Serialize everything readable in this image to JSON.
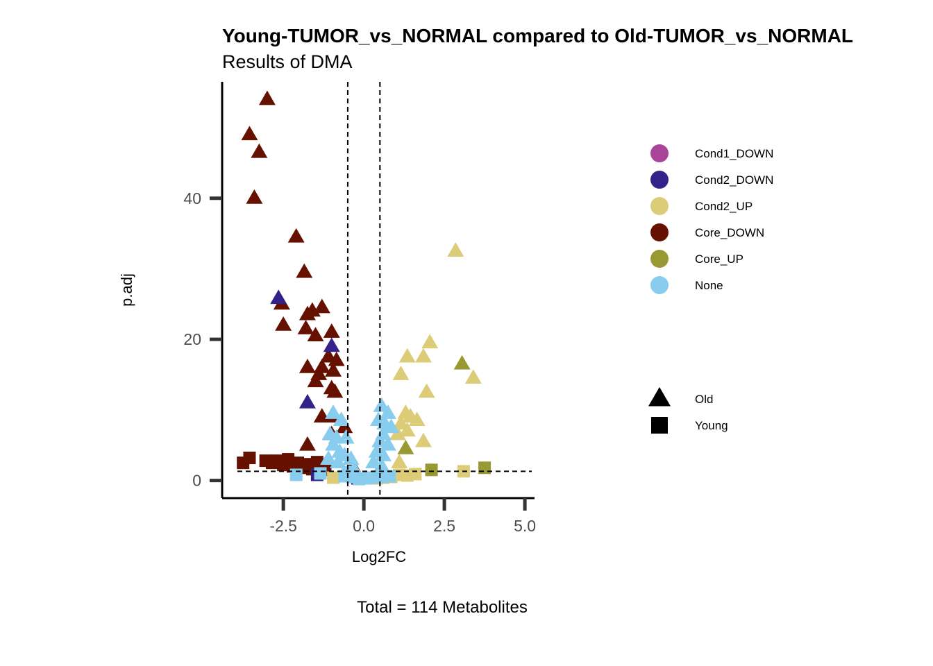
{
  "chart_data": {
    "type": "scatter",
    "title": "Young-TUMOR_vs_NORMAL compared to Old-TUMOR_vs_NORMAL",
    "subtitle": "Results of DMA",
    "xlabel": "Log2FC",
    "ylabel": "p.adj",
    "caption": "Total = 114 Metabolites",
    "xlim": [
      -4.4,
      5.3
    ],
    "ylim": [
      -2.5,
      56.5
    ],
    "x_ticks": [
      -2.5,
      0.0,
      2.5,
      5.0
    ],
    "x_tick_labels": [
      "-2.5",
      "0.0",
      "2.5",
      "5.0"
    ],
    "y_ticks": [
      0,
      20,
      40
    ],
    "y_tick_labels": [
      "0",
      "20",
      "40"
    ],
    "vlines": [
      -0.5,
      0.5
    ],
    "hline": 1.3,
    "grid": false,
    "legend_position": "right",
    "color_legend": [
      {
        "label": "Cond1_DOWN",
        "color": "#AA4499"
      },
      {
        "label": "Cond2_DOWN",
        "color": "#332288"
      },
      {
        "label": "Cond2_UP",
        "color": "#DDCC77"
      },
      {
        "label": "Core_DOWN",
        "color": "#661100"
      },
      {
        "label": "Core_UP",
        "color": "#999933"
      },
      {
        "label": "None",
        "color": "#88CCEE"
      }
    ],
    "shape_legend": [
      {
        "label": "Old",
        "shape": "triangle"
      },
      {
        "label": "Young",
        "shape": "square"
      }
    ],
    "series": [
      {
        "name": "Core_DOWN",
        "color": "#661100",
        "points": [
          {
            "x": -3.0,
            "y": 54.0,
            "shape": "triangle"
          },
          {
            "x": -3.55,
            "y": 49.0,
            "shape": "triangle"
          },
          {
            "x": -3.25,
            "y": 46.5,
            "shape": "triangle"
          },
          {
            "x": -3.4,
            "y": 40.0,
            "shape": "triangle"
          },
          {
            "x": -2.1,
            "y": 34.5,
            "shape": "triangle"
          },
          {
            "x": -1.85,
            "y": 29.5,
            "shape": "triangle"
          },
          {
            "x": -2.55,
            "y": 25.0,
            "shape": "triangle"
          },
          {
            "x": -1.6,
            "y": 24.0,
            "shape": "triangle"
          },
          {
            "x": -1.75,
            "y": 23.5,
            "shape": "triangle"
          },
          {
            "x": -1.3,
            "y": 24.5,
            "shape": "triangle"
          },
          {
            "x": -2.5,
            "y": 22.0,
            "shape": "triangle"
          },
          {
            "x": -1.8,
            "y": 21.5,
            "shape": "triangle"
          },
          {
            "x": -1.5,
            "y": 20.5,
            "shape": "triangle"
          },
          {
            "x": -1.0,
            "y": 21.0,
            "shape": "triangle"
          },
          {
            "x": -1.1,
            "y": 17.5,
            "shape": "triangle"
          },
          {
            "x": -0.85,
            "y": 17.0,
            "shape": "triangle"
          },
          {
            "x": -1.3,
            "y": 16.0,
            "shape": "triangle"
          },
          {
            "x": -1.75,
            "y": 16.0,
            "shape": "triangle"
          },
          {
            "x": -1.4,
            "y": 15.0,
            "shape": "triangle"
          },
          {
            "x": -0.95,
            "y": 15.5,
            "shape": "triangle"
          },
          {
            "x": -1.5,
            "y": 14.0,
            "shape": "triangle"
          },
          {
            "x": -1.0,
            "y": 13.0,
            "shape": "triangle"
          },
          {
            "x": -0.9,
            "y": 12.5,
            "shape": "triangle"
          },
          {
            "x": -1.3,
            "y": 9.0,
            "shape": "triangle"
          },
          {
            "x": -0.95,
            "y": 9.0,
            "shape": "triangle"
          },
          {
            "x": -1.0,
            "y": 6.5,
            "shape": "triangle"
          },
          {
            "x": -0.6,
            "y": 7.5,
            "shape": "triangle"
          },
          {
            "x": -1.75,
            "y": 5.0,
            "shape": "triangle"
          },
          {
            "x": -0.35,
            "y": 2.0,
            "shape": "triangle"
          },
          {
            "x": -3.75,
            "y": 2.5,
            "shape": "square"
          },
          {
            "x": -3.55,
            "y": 3.2,
            "shape": "square"
          },
          {
            "x": -3.05,
            "y": 2.8,
            "shape": "square"
          },
          {
            "x": -2.85,
            "y": 2.5,
            "shape": "square"
          },
          {
            "x": -2.7,
            "y": 2.8,
            "shape": "square"
          },
          {
            "x": -2.5,
            "y": 2.2,
            "shape": "square"
          },
          {
            "x": -2.35,
            "y": 3.0,
            "shape": "square"
          },
          {
            "x": -2.2,
            "y": 2.0,
            "shape": "square"
          },
          {
            "x": -2.05,
            "y": 2.5,
            "shape": "square"
          },
          {
            "x": -1.9,
            "y": 1.8,
            "shape": "square"
          },
          {
            "x": -1.75,
            "y": 2.3,
            "shape": "square"
          },
          {
            "x": -1.6,
            "y": 1.6,
            "shape": "square"
          },
          {
            "x": -1.45,
            "y": 2.6,
            "shape": "square"
          },
          {
            "x": -1.3,
            "y": 2.0,
            "shape": "square"
          },
          {
            "x": -1.2,
            "y": 1.5,
            "shape": "square"
          }
        ]
      },
      {
        "name": "Cond2_DOWN",
        "color": "#332288",
        "points": [
          {
            "x": -2.65,
            "y": 25.8,
            "shape": "triangle"
          },
          {
            "x": -1.0,
            "y": 19.0,
            "shape": "triangle"
          },
          {
            "x": -1.75,
            "y": 11.0,
            "shape": "triangle"
          },
          {
            "x": -1.45,
            "y": 0.8,
            "shape": "square"
          },
          {
            "x": -0.2,
            "y": 0.3,
            "shape": "square"
          }
        ]
      },
      {
        "name": "Cond1_DOWN",
        "color": "#AA4499",
        "points": [
          {
            "x": 0.15,
            "y": 0.4,
            "shape": "square"
          }
        ]
      },
      {
        "name": "Cond2_UP",
        "color": "#DDCC77",
        "points": [
          {
            "x": 2.85,
            "y": 32.5,
            "shape": "triangle"
          },
          {
            "x": 2.05,
            "y": 19.5,
            "shape": "triangle"
          },
          {
            "x": 1.35,
            "y": 17.5,
            "shape": "triangle"
          },
          {
            "x": 1.85,
            "y": 17.5,
            "shape": "triangle"
          },
          {
            "x": 1.15,
            "y": 15.0,
            "shape": "triangle"
          },
          {
            "x": 3.4,
            "y": 14.5,
            "shape": "triangle"
          },
          {
            "x": 1.95,
            "y": 12.5,
            "shape": "triangle"
          },
          {
            "x": 1.3,
            "y": 9.5,
            "shape": "triangle"
          },
          {
            "x": 1.45,
            "y": 9.0,
            "shape": "triangle"
          },
          {
            "x": 1.65,
            "y": 8.5,
            "shape": "triangle"
          },
          {
            "x": 1.15,
            "y": 8.0,
            "shape": "triangle"
          },
          {
            "x": 1.35,
            "y": 7.0,
            "shape": "triangle"
          },
          {
            "x": 1.05,
            "y": 6.5,
            "shape": "triangle"
          },
          {
            "x": 1.85,
            "y": 5.5,
            "shape": "triangle"
          },
          {
            "x": 1.1,
            "y": 2.5,
            "shape": "triangle"
          },
          {
            "x": 3.1,
            "y": 1.3,
            "shape": "square"
          },
          {
            "x": 1.6,
            "y": 0.9,
            "shape": "square"
          },
          {
            "x": 1.35,
            "y": 0.7,
            "shape": "square"
          },
          {
            "x": 1.1,
            "y": 0.8,
            "shape": "square"
          },
          {
            "x": 0.85,
            "y": 0.5,
            "shape": "square"
          },
          {
            "x": 0.6,
            "y": 0.4,
            "shape": "square"
          },
          {
            "x": 0.4,
            "y": 0.3,
            "shape": "square"
          },
          {
            "x": -0.95,
            "y": 0.4,
            "shape": "square"
          }
        ]
      },
      {
        "name": "Core_UP",
        "color": "#999933",
        "points": [
          {
            "x": 3.05,
            "y": 16.5,
            "shape": "triangle"
          },
          {
            "x": 1.3,
            "y": 4.5,
            "shape": "triangle"
          },
          {
            "x": 2.1,
            "y": 1.5,
            "shape": "square"
          },
          {
            "x": 3.75,
            "y": 1.8,
            "shape": "square"
          }
        ]
      },
      {
        "name": "None",
        "color": "#88CCEE",
        "points": [
          {
            "x": -0.95,
            "y": 9.5,
            "shape": "triangle"
          },
          {
            "x": -0.7,
            "y": 8.5,
            "shape": "triangle"
          },
          {
            "x": -1.05,
            "y": 6.5,
            "shape": "triangle"
          },
          {
            "x": -0.85,
            "y": 6.0,
            "shape": "triangle"
          },
          {
            "x": -0.55,
            "y": 6.0,
            "shape": "triangle"
          },
          {
            "x": -0.95,
            "y": 5.0,
            "shape": "triangle"
          },
          {
            "x": -0.75,
            "y": 4.0,
            "shape": "triangle"
          },
          {
            "x": -0.6,
            "y": 3.5,
            "shape": "triangle"
          },
          {
            "x": -0.4,
            "y": 3.0,
            "shape": "triangle"
          },
          {
            "x": -1.1,
            "y": 3.0,
            "shape": "triangle"
          },
          {
            "x": -0.8,
            "y": 2.5,
            "shape": "triangle"
          },
          {
            "x": -0.3,
            "y": 1.5,
            "shape": "triangle"
          },
          {
            "x": 0.55,
            "y": 10.5,
            "shape": "triangle"
          },
          {
            "x": 0.75,
            "y": 9.5,
            "shape": "triangle"
          },
          {
            "x": 0.45,
            "y": 8.5,
            "shape": "triangle"
          },
          {
            "x": 0.65,
            "y": 8.0,
            "shape": "triangle"
          },
          {
            "x": 0.85,
            "y": 7.5,
            "shape": "triangle"
          },
          {
            "x": 0.6,
            "y": 6.5,
            "shape": "triangle"
          },
          {
            "x": 0.5,
            "y": 5.5,
            "shape": "triangle"
          },
          {
            "x": 0.75,
            "y": 5.0,
            "shape": "triangle"
          },
          {
            "x": 0.4,
            "y": 4.0,
            "shape": "triangle"
          },
          {
            "x": 0.6,
            "y": 3.5,
            "shape": "triangle"
          },
          {
            "x": 0.3,
            "y": 2.5,
            "shape": "triangle"
          },
          {
            "x": 0.55,
            "y": 2.0,
            "shape": "triangle"
          },
          {
            "x": -2.1,
            "y": 0.8,
            "shape": "square"
          },
          {
            "x": -1.35,
            "y": 1.0,
            "shape": "square"
          },
          {
            "x": -0.6,
            "y": 0.6,
            "shape": "square"
          },
          {
            "x": -0.35,
            "y": 0.5,
            "shape": "square"
          },
          {
            "x": -0.15,
            "y": 0.2,
            "shape": "square"
          },
          {
            "x": 0.05,
            "y": 0.3,
            "shape": "square"
          },
          {
            "x": 0.3,
            "y": 0.4,
            "shape": "square"
          },
          {
            "x": 0.55,
            "y": 0.5,
            "shape": "square"
          },
          {
            "x": 0.8,
            "y": 0.6,
            "shape": "square"
          },
          {
            "x": -0.5,
            "y": 1.2,
            "shape": "square"
          }
        ]
      }
    ]
  }
}
